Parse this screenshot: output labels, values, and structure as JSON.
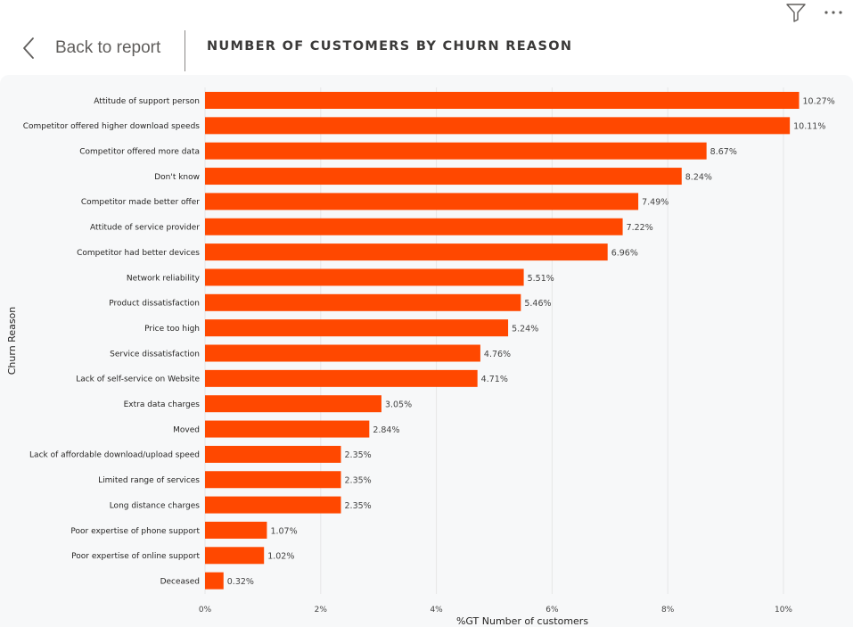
{
  "header": {
    "back_label": "Back to report",
    "title": "NUMBER OF CUSTOMERS BY CHURN REASON"
  },
  "toolbar": {
    "filter_icon": "filter-icon",
    "more_icon": "more-options-icon"
  },
  "colors": {
    "bar": "#ff4800",
    "panel": "#f7f8f9",
    "grid": "#e6e6e6"
  },
  "chart_data": {
    "type": "bar",
    "orientation": "horizontal",
    "title": "NUMBER OF CUSTOMERS BY CHURN REASON",
    "xlabel": "%GT Number of customers",
    "ylabel": "Churn Reason",
    "xlim": [
      0,
      10.27
    ],
    "x_ticks": [
      {
        "value": 0,
        "label": "0%"
      },
      {
        "value": 2,
        "label": "2%"
      },
      {
        "value": 4,
        "label": "4%"
      },
      {
        "value": 6,
        "label": "6%"
      },
      {
        "value": 8,
        "label": "8%"
      },
      {
        "value": 10,
        "label": "10%"
      }
    ],
    "grid": true,
    "legend": "none",
    "categories": [
      "Attitude of support person",
      "Competitor offered higher download speeds",
      "Competitor offered more data",
      "Don't know",
      "Competitor made better offer",
      "Attitude of service provider",
      "Competitor had better devices",
      "Network reliability",
      "Product dissatisfaction",
      "Price too high",
      "Service dissatisfaction",
      "Lack of self-service on Website",
      "Extra data charges",
      "Moved",
      "Lack of affordable download/upload speed",
      "Limited range of services",
      "Long distance charges",
      "Poor expertise of phone support",
      "Poor expertise of online support",
      "Deceased"
    ],
    "values": [
      10.27,
      10.11,
      8.67,
      8.24,
      7.49,
      7.22,
      6.96,
      5.51,
      5.46,
      5.24,
      4.76,
      4.71,
      3.05,
      2.84,
      2.35,
      2.35,
      2.35,
      1.07,
      1.02,
      0.32
    ],
    "value_labels": [
      "10.27%",
      "10.11%",
      "8.67%",
      "8.24%",
      "7.49%",
      "7.22%",
      "6.96%",
      "5.51%",
      "5.46%",
      "5.24%",
      "4.76%",
      "4.71%",
      "3.05%",
      "2.84%",
      "2.35%",
      "2.35%",
      "2.35%",
      "1.07%",
      "1.02%",
      "0.32%"
    ]
  }
}
